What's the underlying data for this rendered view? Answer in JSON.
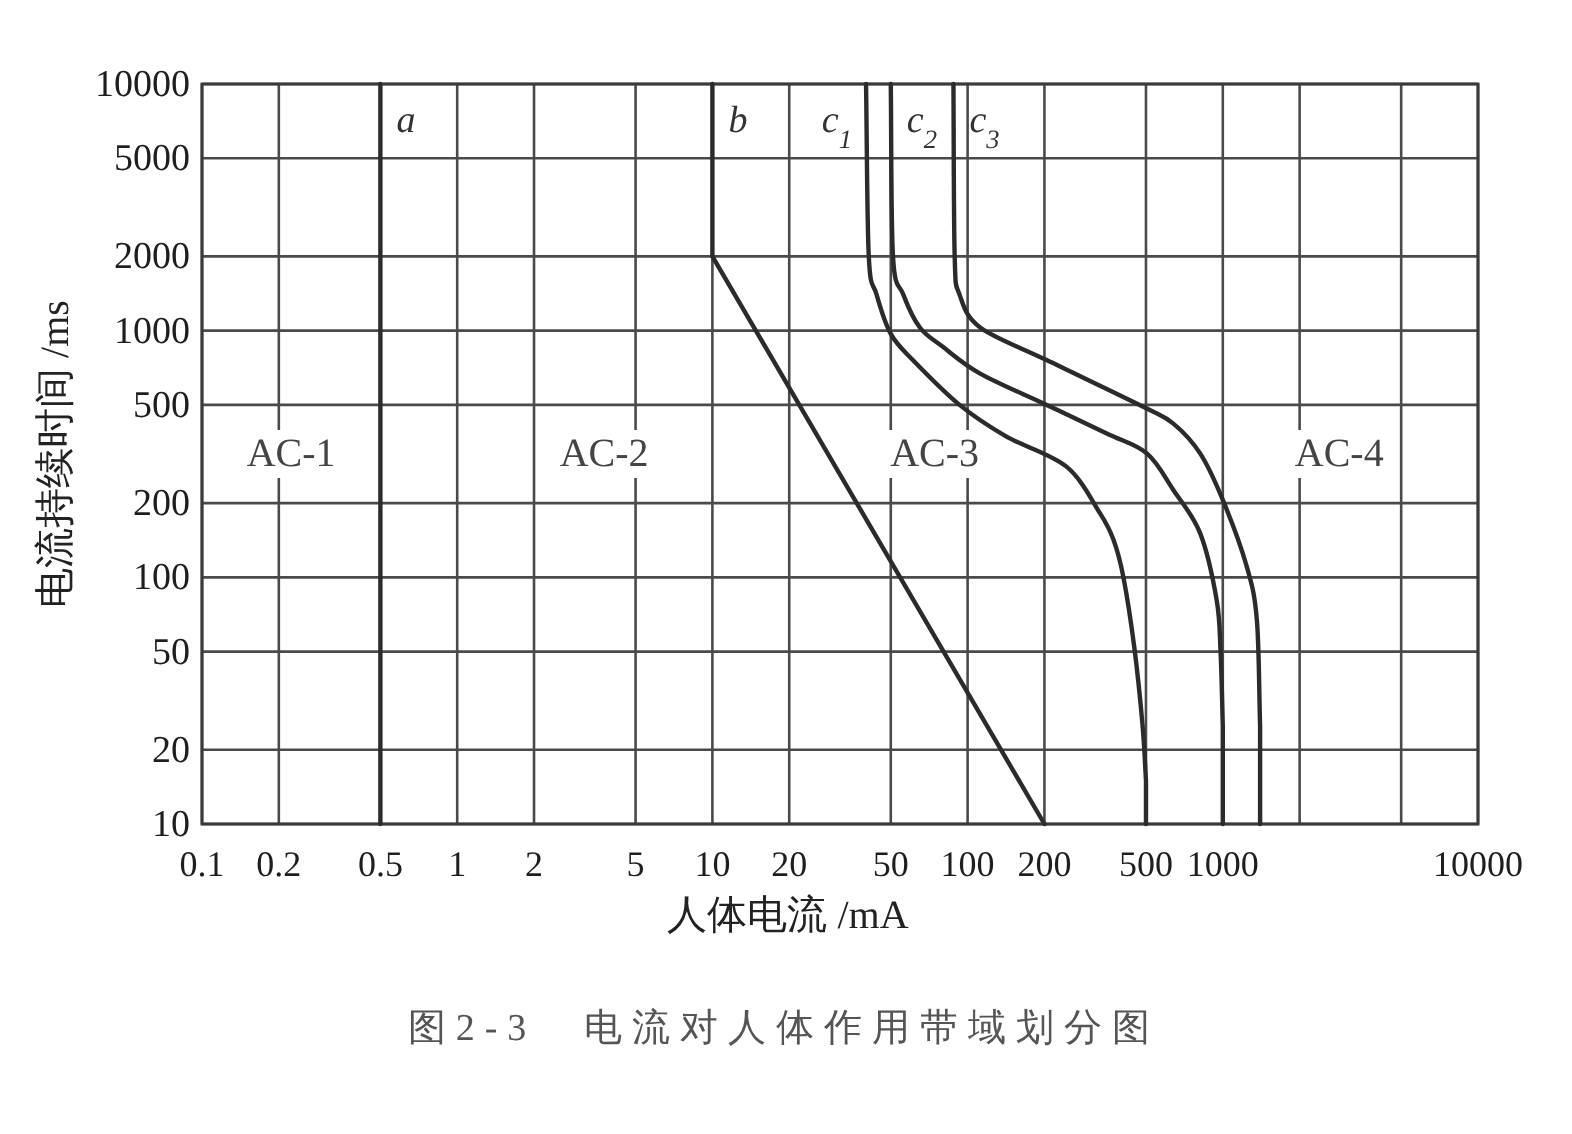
{
  "chart_data": {
    "type": "line",
    "title": "图2-3　电流对人体作用带域划分图",
    "xlabel": "人体电流 /mA",
    "ylabel": "电流持续时间 /ms",
    "annotations": [
      "AC-1",
      "AC-2",
      "AC-3",
      "AC-4"
    ],
    "log": "xy",
    "xlim": [
      0.1,
      10000
    ],
    "ylim": [
      10,
      10000
    ],
    "xticks": [
      0.1,
      0.2,
      0.5,
      1,
      2,
      5,
      10,
      20,
      50,
      100,
      200,
      500,
      1000,
      {
        "value": 2000,
        "label": null
      },
      {
        "value": 5000,
        "label": null
      },
      10000
    ],
    "yticks": [
      10,
      20,
      50,
      100,
      200,
      500,
      1000,
      2000,
      5000,
      10000
    ],
    "grid": true,
    "series": [
      {
        "name": "a",
        "color": "#2b2b2b",
        "x": [
          0.5,
          0.5
        ],
        "values": [
          10000,
          10
        ]
      },
      {
        "name": "b",
        "color": "#2b2b2b",
        "x": [
          10,
          10,
          200
        ],
        "values": [
          10000,
          2000,
          10
        ]
      },
      {
        "name": "c$_{1}$",
        "color": "#2b2b2b",
        "x": [
          40,
          41,
          44,
          50,
          61,
          93,
          142,
          244,
          330,
          373,
          408,
          450,
          485,
          500,
          500
        ],
        "values": [
          10000,
          2000,
          1400,
          970,
          760,
          500,
          372,
          281,
          182,
          142,
          100,
          52,
          25,
          15,
          10
        ]
      },
      {
        "name": "c$_{2}$",
        "color": "#2b2b2b",
        "x": [
          50,
          51,
          56,
          65,
          80,
          112,
          204,
          351,
          504,
          640,
          815,
          946,
          980,
          1000,
          1000
        ],
        "values": [
          10000,
          2000,
          1400,
          1030,
          860,
          670,
          500,
          383,
          318,
          226,
          151,
          81,
          50,
          25,
          10
        ]
      },
      {
        "name": "c$_{3}$",
        "color": "#2b2b2b",
        "x": [
          88,
          89,
          93,
          112,
          204,
          490,
          640,
          815,
          1000,
          1240,
          1360,
          1400,
          1400
        ],
        "values": [
          10000,
          2000,
          1400,
          1030,
          760,
          490,
          420,
          318,
          206,
          111,
          67,
          25,
          10
        ]
      }
    ]
  }
}
